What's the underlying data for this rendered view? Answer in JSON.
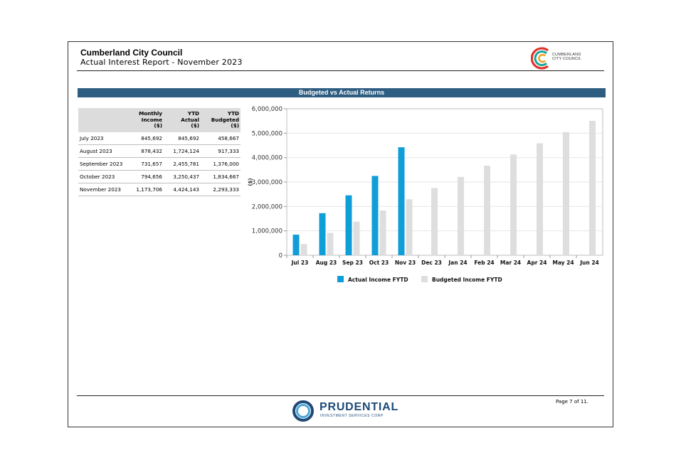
{
  "header": {
    "title": "Cumberland City Council",
    "subtitle": "Actual Interest Report - November 2023",
    "logo_text_line1": "CUMBERLAND",
    "logo_text_line2": "CITY COUNCIL"
  },
  "banner": {
    "title": "Budgeted vs Actual Returns"
  },
  "table": {
    "headers": [
      "",
      [
        "Monthly",
        "Income",
        "($)"
      ],
      [
        "YTD",
        "Actual",
        "($)"
      ],
      [
        "YTD",
        "Budgeted",
        "($)"
      ]
    ],
    "rows": [
      [
        "July 2023",
        "845,692",
        "845,692",
        "458,667"
      ],
      [
        "August 2023",
        "878,432",
        "1,724,124",
        "917,333"
      ],
      [
        "September 2023",
        "731,657",
        "2,455,781",
        "1,376,000"
      ],
      [
        "October 2023",
        "794,656",
        "3,250,437",
        "1,834,667"
      ],
      [
        "November 2023",
        "1,173,706",
        "4,424,143",
        "2,293,333"
      ]
    ]
  },
  "chart_data": {
    "type": "bar",
    "title": "Budgeted vs Actual Returns",
    "xlabel": "",
    "ylabel": "($)",
    "ylim": [
      0,
      6000000
    ],
    "yticks": [
      "0",
      "1,000,000",
      "2,000,000",
      "3,000,000",
      "4,000,000",
      "5,000,000",
      "6,000,000"
    ],
    "categories": [
      "Jul 23",
      "Aug 23",
      "Sep 23",
      "Oct 23",
      "Nov 23",
      "Dec 23",
      "Jan 24",
      "Feb 24",
      "Mar 24",
      "Apr 24",
      "May 24",
      "Jun 24"
    ],
    "series": [
      {
        "name": "Actual Income FYTD",
        "color": "#0f9ed8",
        "values": [
          845692,
          1724124,
          2455781,
          3250437,
          4424143,
          null,
          null,
          null,
          null,
          null,
          null,
          null
        ]
      },
      {
        "name": "Budgeted Income FYTD",
        "color": "#dedede",
        "values": [
          458667,
          917333,
          1376000,
          1834667,
          2293333,
          2752000,
          3210667,
          3669333,
          4128000,
          4586667,
          5045333,
          5504000
        ]
      }
    ],
    "legend_position": "bottom",
    "grid": true
  },
  "footer": {
    "brand": "PRUDENTIAL",
    "brand_sub": "INVESTMENT SERVICES CORP",
    "page": "Page 7 of 11."
  }
}
